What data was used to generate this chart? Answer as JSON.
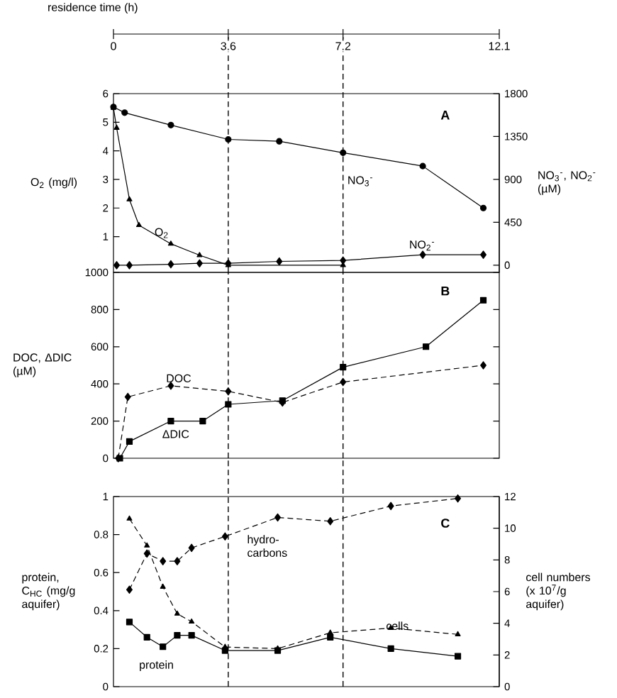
{
  "chart_data": [
    {
      "type": "line",
      "xlim": [
        0,
        12.1
      ],
      "xticks": [
        0,
        3.6,
        7.2,
        12.1
      ],
      "xlabel": "residence time (h)",
      "ylim": [
        -0.25,
        6
      ],
      "yticks": [
        1,
        2,
        3,
        4,
        5,
        6
      ],
      "y2lim": [
        -75,
        1800
      ],
      "y2ticks": [
        0,
        450,
        900,
        1350,
        1800
      ],
      "ylabel": "O$_{2}$ (mg/l)",
      "y2label": "NO$_{3}$$^{-}$, NO$_{2}$$^{-}$ (µM)",
      "series": [
        {
          "name": "NO$_{3}$$^{-}$",
          "color": "#000000",
          "marker": "circle",
          "line_style": "solid",
          "axis": "y2",
          "x": [
            0,
            0.35,
            1.8,
            3.6,
            5.2,
            7.2,
            9.7,
            11.6
          ],
          "values": [
            1660,
            1600,
            1470,
            1320,
            1300,
            1180,
            1040,
            600
          ]
        },
        {
          "name": "O$_{2}$",
          "color": "#000000",
          "marker": "triangle",
          "line_style": "solid",
          "axis": "y",
          "x": [
            0,
            0.1,
            0.5,
            0.8,
            1.8,
            2.7,
            3.6,
            7.2
          ],
          "values": [
            5.5,
            4.8,
            2.3,
            1.4,
            0.75,
            0.35,
            0,
            0
          ]
        },
        {
          "name": "NO$_{2}$$^{-}$",
          "color": "#000000",
          "marker": "diamond",
          "line_style": "solid",
          "axis": "y2",
          "x": [
            0.1,
            0.5,
            1.8,
            2.7,
            3.6,
            5.2,
            7.2,
            9.7,
            11.6
          ],
          "values": [
            0,
            0,
            10,
            20,
            20,
            40,
            50,
            110,
            110
          ]
        }
      ],
      "ref_lines": [
        {
          "axis": "x",
          "value": 3.6,
          "line_style": "dashed"
        },
        {
          "axis": "x",
          "value": 7.2,
          "line_style": "dashed"
        }
      ],
      "annotations": [
        "A"
      ]
    },
    {
      "type": "line",
      "xlim": [
        0,
        12.1
      ],
      "ylim": [
        0,
        1000
      ],
      "yticks": [
        0,
        200,
        400,
        600,
        800,
        1000
      ],
      "ylabel": "DOC, ΔDIC (µM)",
      "tick_labels": "y",
      "series": [
        {
          "name": "ΔDIC",
          "color": "#000000",
          "marker": "square",
          "line_style": "solid",
          "x": [
            0.2,
            0.5,
            1.8,
            2.8,
            3.6,
            5.3,
            7.2,
            9.8,
            11.6
          ],
          "values": [
            0,
            90,
            200,
            200,
            290,
            310,
            490,
            600,
            850
          ]
        },
        {
          "name": "DOC",
          "color": "#000000",
          "marker": "diamond",
          "line_style": "dashed",
          "x": [
            0.15,
            0.45,
            1.8,
            3.6,
            5.3,
            7.2,
            11.6
          ],
          "values": [
            0,
            330,
            390,
            360,
            300,
            410,
            500
          ]
        }
      ],
      "ref_lines": [
        {
          "axis": "x",
          "value": 3.6,
          "line_style": "dashed"
        },
        {
          "axis": "x",
          "value": 7.2,
          "line_style": "dashed"
        }
      ],
      "annotations": [
        "B"
      ]
    },
    {
      "type": "line",
      "xlim": [
        0,
        12.1
      ],
      "ylim": [
        0,
        1
      ],
      "yticks": [
        0,
        0.2,
        0.4,
        0.6,
        0.8,
        1
      ],
      "y2lim": [
        0,
        12
      ],
      "y2ticks": [
        0,
        2,
        4,
        6,
        8,
        10,
        12
      ],
      "ylabel": "protein, C$_{HC}$ (mg/g aquifer)",
      "y2label": "cell numbers (x 10$^{7}$/g aquifer)",
      "tick_labels": "y",
      "series": [
        {
          "name": "protein",
          "color": "#000000",
          "marker": "square",
          "line_style": "solid",
          "x": [
            0.5,
            1.05,
            1.55,
            2.0,
            2.45,
            3.5,
            5.15,
            6.8,
            8.7,
            10.8
          ],
          "values": [
            0.34,
            0.26,
            0.21,
            0.27,
            0.27,
            0.19,
            0.19,
            0.26,
            0.2,
            0.16
          ]
        },
        {
          "name": "hydro-carbons",
          "color": "#000000",
          "marker": "diamond",
          "line_style": "dashed",
          "x": [
            0.5,
            1.05,
            1.55,
            2.0,
            2.45,
            3.5,
            5.15,
            6.8,
            8.7,
            10.8
          ],
          "values": [
            0.51,
            0.7,
            0.66,
            0.66,
            0.73,
            0.79,
            0.89,
            0.87,
            0.95,
            0.99
          ]
        },
        {
          "name": "cells",
          "color": "#000000",
          "marker": "triangle",
          "line_style": "dashed",
          "axis": "y2",
          "x": [
            0.5,
            1.05,
            1.55,
            2.0,
            2.45,
            3.5,
            5.15,
            6.8,
            8.7,
            10.8
          ],
          "values": [
            10.6,
            8.9,
            6.3,
            4.6,
            4.1,
            2.5,
            2.4,
            3.4,
            3.7,
            3.3
          ]
        }
      ],
      "ref_lines": [
        {
          "axis": "x",
          "value": 3.6,
          "line_style": "dashed"
        },
        {
          "axis": "x",
          "value": 7.2,
          "line_style": "dashed"
        }
      ],
      "annotations": [
        "C"
      ]
    }
  ]
}
